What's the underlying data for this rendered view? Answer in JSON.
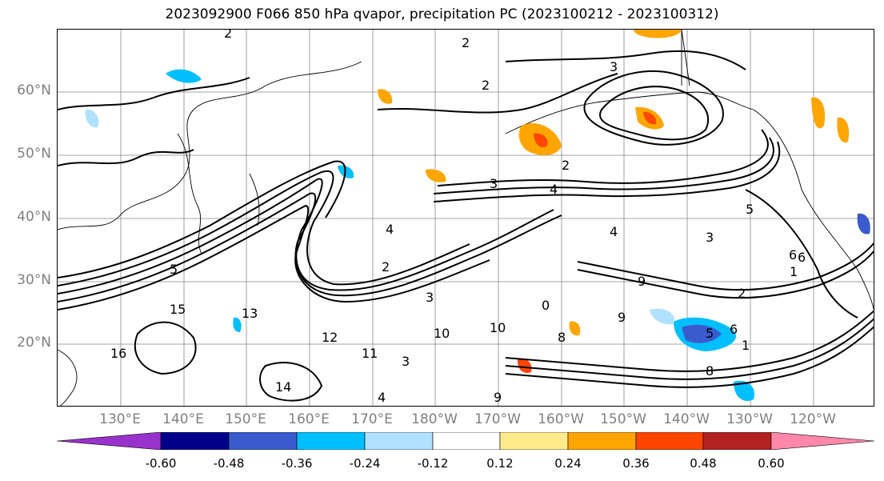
{
  "title": "2023092900 F066 850 hPa qvapor, precipitation PC (2023100212 - 2023100312)",
  "lat_labels": [
    "60°N",
    "50°N",
    "40°N",
    "30°N",
    "20°N"
  ],
  "lon_labels": [
    "130°E",
    "140°E",
    "150°E",
    "160°E",
    "170°E",
    "180°W",
    "170°W",
    "160°W",
    "150°W",
    "140°W",
    "130°W",
    "120°W"
  ],
  "contour_labels": [
    "2",
    "2",
    "3",
    "2",
    "2",
    "3",
    "4",
    "3",
    "4",
    "5",
    "6",
    "2",
    "3",
    "4",
    "5",
    "6",
    "8",
    "9",
    "10",
    "8",
    "9",
    "10",
    "11",
    "12",
    "13",
    "14",
    "15",
    "16",
    "6",
    "4",
    "3",
    "2",
    "1",
    "0",
    "1",
    "5",
    "9"
  ],
  "colorbar": {
    "ticks": [
      "-0.60",
      "-0.48",
      "-0.36",
      "-0.24",
      "-0.12",
      "0.12",
      "0.24",
      "0.36",
      "0.48",
      "0.60"
    ],
    "colors": [
      "#9932cc",
      "#00008b",
      "#3a5bcd",
      "#00bfff",
      "#b0e2ff",
      "#ffffff",
      "#ffeb8a",
      "#ffa500",
      "#ff4500",
      "#b22222",
      "#ff88aa"
    ]
  }
}
